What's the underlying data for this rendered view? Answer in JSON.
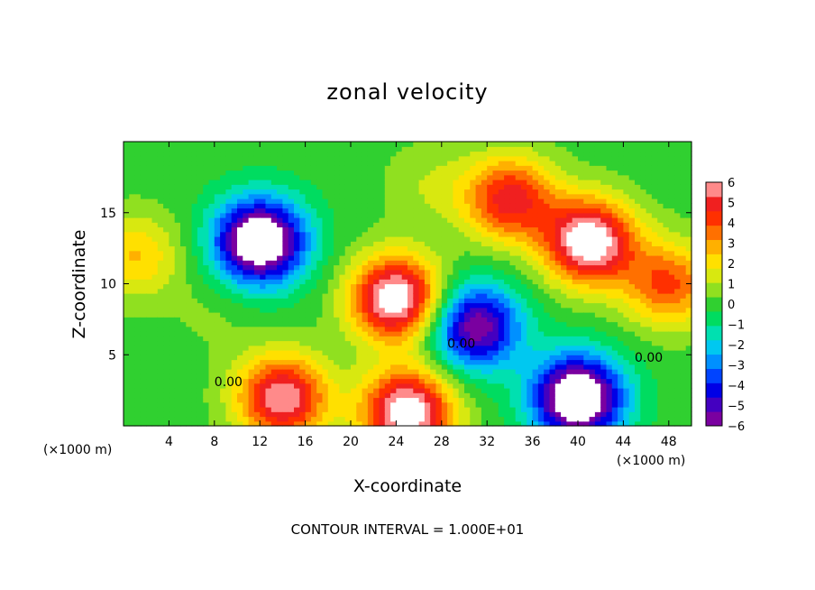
{
  "chart_data": {
    "type": "heatmap",
    "title": "zonal velocity",
    "xlabel": "X-coordinate",
    "ylabel": "Z-coordinate",
    "x_unit_left": "(×1000 m)",
    "x_unit_right": "(×1000 m)",
    "x_range": [
      0,
      50
    ],
    "y_range": [
      0,
      20
    ],
    "x_ticks": [
      "4",
      "8",
      "12",
      "16",
      "20",
      "24",
      "28",
      "32",
      "36",
      "40",
      "44",
      "48"
    ],
    "y_ticks": [
      "5",
      "10",
      "15"
    ],
    "colorbar": {
      "range": [
        -6,
        6
      ],
      "tick_labels": [
        "6",
        "5",
        "4",
        "3",
        "2",
        "1",
        "0",
        "−1",
        "−2",
        "−3",
        "−4",
        "−5",
        "−6"
      ],
      "colors": [
        "#7a00a0",
        "#4400c0",
        "#0000e6",
        "#0044ff",
        "#0090ff",
        "#00c8f0",
        "#00e0b0",
        "#00dc60",
        "#30d030",
        "#90e020",
        "#d8e810",
        "#ffe000",
        "#ffb000",
        "#ff7000",
        "#ff3000",
        "#f02020",
        "#ff8a8a"
      ],
      "out_of_range_color": "#ffffff"
    },
    "contour_labels": [
      "0.00",
      "0.00",
      "0.00"
    ],
    "contour_interval_text": "CONTOUR INTERVAL = 1.000E+01",
    "features": [
      {
        "x": 12,
        "z": 13,
        "value": -8
      },
      {
        "x": 24,
        "z": 9,
        "value": 7
      },
      {
        "x": 25,
        "z": 1,
        "value": 7
      },
      {
        "x": 41,
        "z": 13,
        "value": 7
      },
      {
        "x": 48,
        "z": 10,
        "value": 4
      },
      {
        "x": 31,
        "z": 7,
        "value": -6
      },
      {
        "x": 34,
        "z": 16,
        "value": 5
      },
      {
        "x": 27,
        "z": 17,
        "value": 1
      },
      {
        "x": 14,
        "z": 2,
        "value": 6
      },
      {
        "x": 40,
        "z": 2,
        "value": -8
      },
      {
        "x": 1,
        "z": 12,
        "value": 2.5
      },
      {
        "x": 8,
        "z": 8,
        "value": 0.5
      }
    ]
  }
}
